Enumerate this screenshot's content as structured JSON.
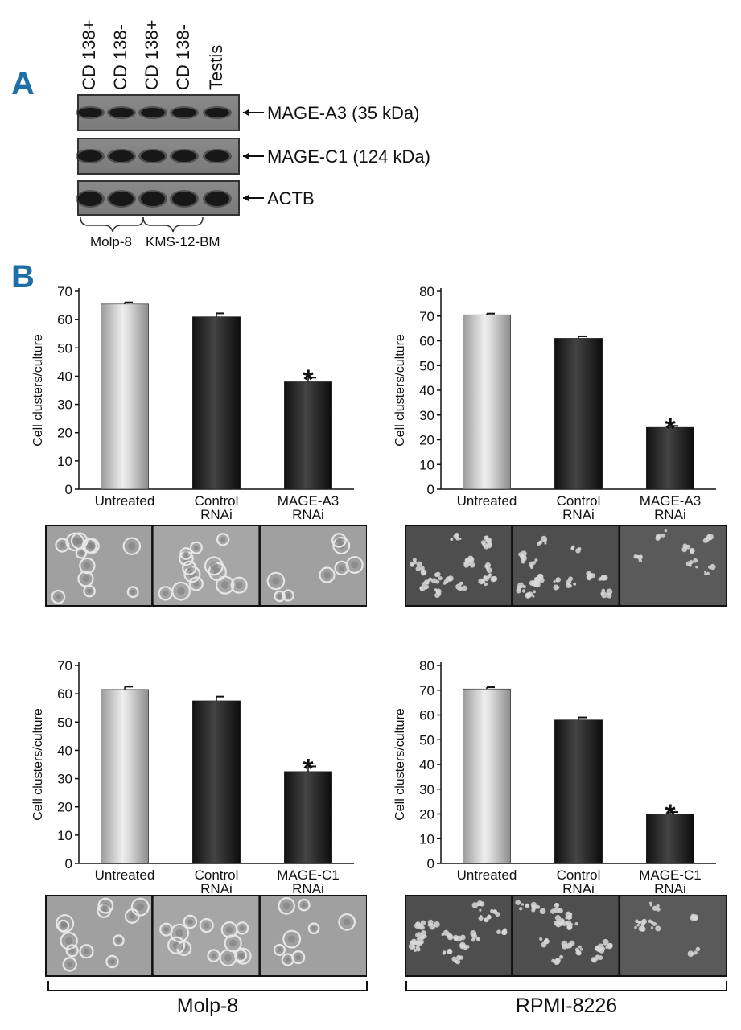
{
  "panel_a": {
    "letter": "A",
    "lanes": [
      "CD 138+",
      "CD 138-",
      "CD 138+",
      "CD 138-",
      "Testis"
    ],
    "blots": [
      {
        "label": "MAGE-A3 (35 kDa)"
      },
      {
        "label": "MAGE-C1 (124 kDa)"
      },
      {
        "label": "ACTB"
      }
    ],
    "groups": [
      "Molp-8",
      "KMS-12-BM"
    ]
  },
  "panel_b": {
    "letter": "B",
    "bottom_labels": [
      "Molp-8",
      "RPMI-8226"
    ]
  },
  "chart_data": [
    {
      "type": "bar",
      "categories": [
        "Untreated",
        "Control\nRNAi",
        "MAGE-A3\nRNAi"
      ],
      "values": [
        65.5,
        61,
        38
      ],
      "errors": [
        0.6,
        1.2,
        1.5
      ],
      "significant": [
        false,
        false,
        true
      ],
      "significance_marker": "*",
      "ylabel": "Cell clusters/culture",
      "ylim": [
        0,
        70
      ],
      "yticks": [
        0,
        10,
        20,
        30,
        40,
        50,
        60,
        70
      ]
    },
    {
      "type": "bar",
      "categories": [
        "Untreated",
        "Control\nRNAi",
        "MAGE-A3\nRNAi"
      ],
      "values": [
        70.5,
        61,
        25
      ],
      "errors": [
        0.5,
        0.8,
        0.6
      ],
      "significant": [
        false,
        false,
        true
      ],
      "significance_marker": "*",
      "ylabel": "Cell clusters/culture",
      "ylim": [
        0,
        80
      ],
      "yticks": [
        0,
        10,
        20,
        30,
        40,
        50,
        60,
        70,
        80
      ]
    },
    {
      "type": "bar",
      "categories": [
        "Untreated",
        "Control\nRNAi",
        "MAGE-C1\nRNAi"
      ],
      "values": [
        61.5,
        57.5,
        32.5
      ],
      "errors": [
        1.0,
        1.5,
        1.8
      ],
      "significant": [
        false,
        false,
        true
      ],
      "significance_marker": "*",
      "ylabel": "Cell clusters/culture",
      "ylim": [
        0,
        70
      ],
      "yticks": [
        0,
        10,
        20,
        30,
        40,
        50,
        60,
        70
      ]
    },
    {
      "type": "bar",
      "categories": [
        "Untreated",
        "Control\nRNAi",
        "MAGE-C1\nRNAi"
      ],
      "values": [
        70.5,
        58,
        20
      ],
      "errors": [
        0.7,
        1.0,
        0.8
      ],
      "significant": [
        false,
        false,
        true
      ],
      "significance_marker": "*",
      "ylabel": "Cell clusters/culture",
      "ylim": [
        0,
        80
      ],
      "yticks": [
        0,
        10,
        20,
        30,
        40,
        50,
        60,
        70,
        80
      ]
    }
  ]
}
